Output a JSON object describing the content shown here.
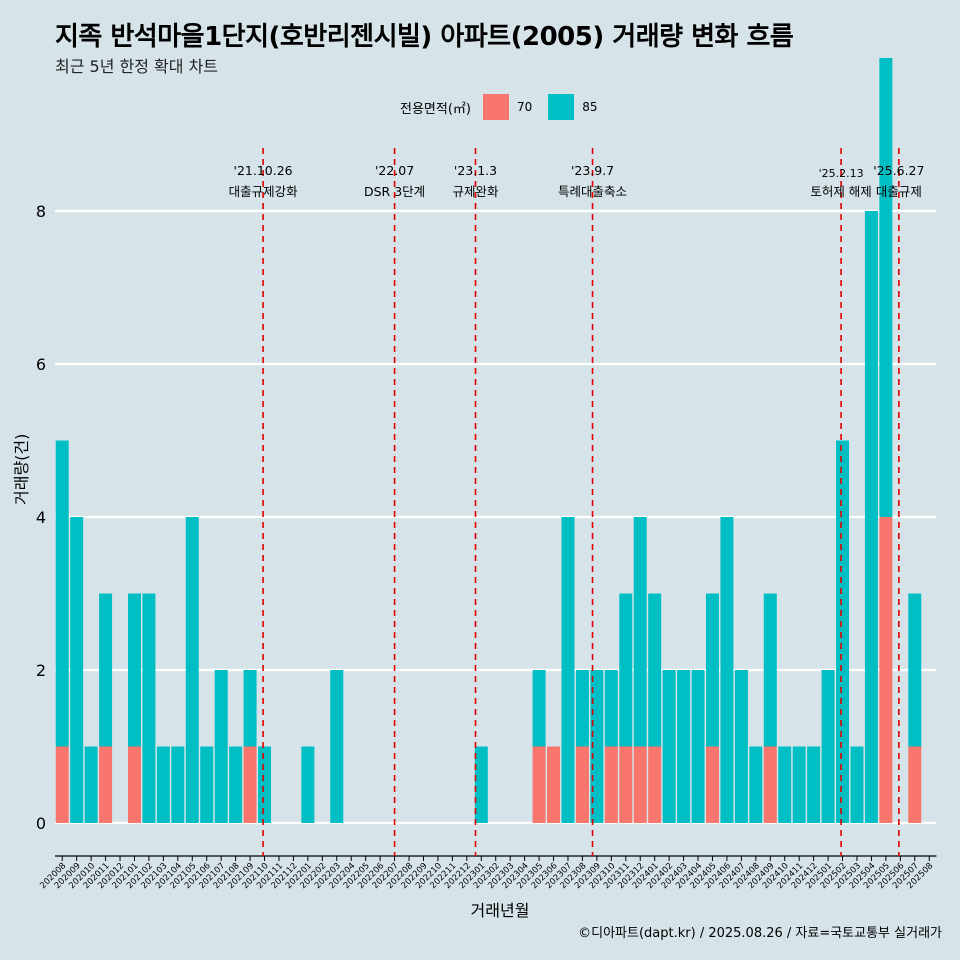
{
  "title": "지족 반석마을1단지(호반리젠시빌) 아파트(2005) 거래량 변화 흐름",
  "subtitle": "최근 5년 한정 확대 차트",
  "legend": {
    "title": "전용면적(㎡)",
    "items": [
      {
        "label": "70",
        "color": "#F8766D"
      },
      {
        "label": "85",
        "color": "#00BFC4"
      }
    ]
  },
  "caption": "©디아파트(dapt.kr) / 2025.08.26 / 자료=국토교통부 실거래가",
  "chart_data": {
    "type": "bar",
    "xlabel": "거래년월",
    "ylabel": "거래량(건)",
    "ylim": [
      0,
      8
    ],
    "yticks": [
      0,
      2,
      4,
      6,
      8
    ],
    "categories": [
      "202008",
      "202009",
      "202010",
      "202011",
      "202012",
      "202101",
      "202102",
      "202103",
      "202104",
      "202105",
      "202106",
      "202107",
      "202108",
      "202109",
      "202110",
      "202111",
      "202112",
      "202201",
      "202202",
      "202203",
      "202204",
      "202205",
      "202206",
      "202207",
      "202208",
      "202209",
      "202210",
      "202211",
      "202212",
      "202301",
      "202302",
      "202303",
      "202304",
      "202305",
      "202306",
      "202307",
      "202308",
      "202309",
      "202310",
      "202311",
      "202312",
      "202401",
      "202402",
      "202403",
      "202404",
      "202405",
      "202406",
      "202407",
      "202408",
      "202409",
      "202410",
      "202411",
      "202412",
      "202501",
      "202502",
      "202503",
      "202504",
      "202505",
      "202506",
      "202507",
      "202508"
    ],
    "series": [
      {
        "name": "70",
        "color": "#F8766D",
        "values": [
          1,
          0,
          0,
          1,
          0,
          1,
          0,
          0,
          0,
          0,
          0,
          0,
          0,
          1,
          0,
          0,
          0,
          0,
          0,
          0,
          0,
          0,
          0,
          0,
          0,
          0,
          0,
          0,
          0,
          0,
          0,
          0,
          0,
          1,
          1,
          0,
          1,
          0,
          1,
          1,
          1,
          1,
          0,
          0,
          0,
          1,
          0,
          0,
          0,
          1,
          0,
          0,
          0,
          0,
          0,
          0,
          0,
          4,
          0,
          1,
          0
        ]
      },
      {
        "name": "85",
        "color": "#00BFC4",
        "values": [
          4,
          4,
          1,
          2,
          0,
          2,
          3,
          1,
          1,
          4,
          1,
          2,
          1,
          1,
          1,
          0,
          0,
          1,
          0,
          2,
          0,
          0,
          0,
          0,
          0,
          0,
          0,
          0,
          0,
          1,
          0,
          0,
          0,
          1,
          0,
          4,
          1,
          2,
          1,
          2,
          3,
          2,
          2,
          2,
          2,
          2,
          4,
          2,
          1,
          2,
          1,
          1,
          1,
          2,
          5,
          1,
          8,
          6,
          0,
          2,
          0
        ]
      }
    ],
    "events": [
      {
        "date": "'21.10.26",
        "label": "대출규제강화",
        "pos": 14.4
      },
      {
        "date": "'22.07",
        "label": "DSR 3단계",
        "pos": 23.5
      },
      {
        "date": "'23.1.3",
        "label": "규제완화",
        "pos": 29.1
      },
      {
        "date": "'23.9.7",
        "label": "특례대출축소",
        "pos": 37.2
      },
      {
        "date": "'25.2.13",
        "label": "토허제 해제",
        "pos": 54.4
      },
      {
        "date": "'25.6.27",
        "label": "대출규제",
        "pos": 58.4
      }
    ]
  }
}
